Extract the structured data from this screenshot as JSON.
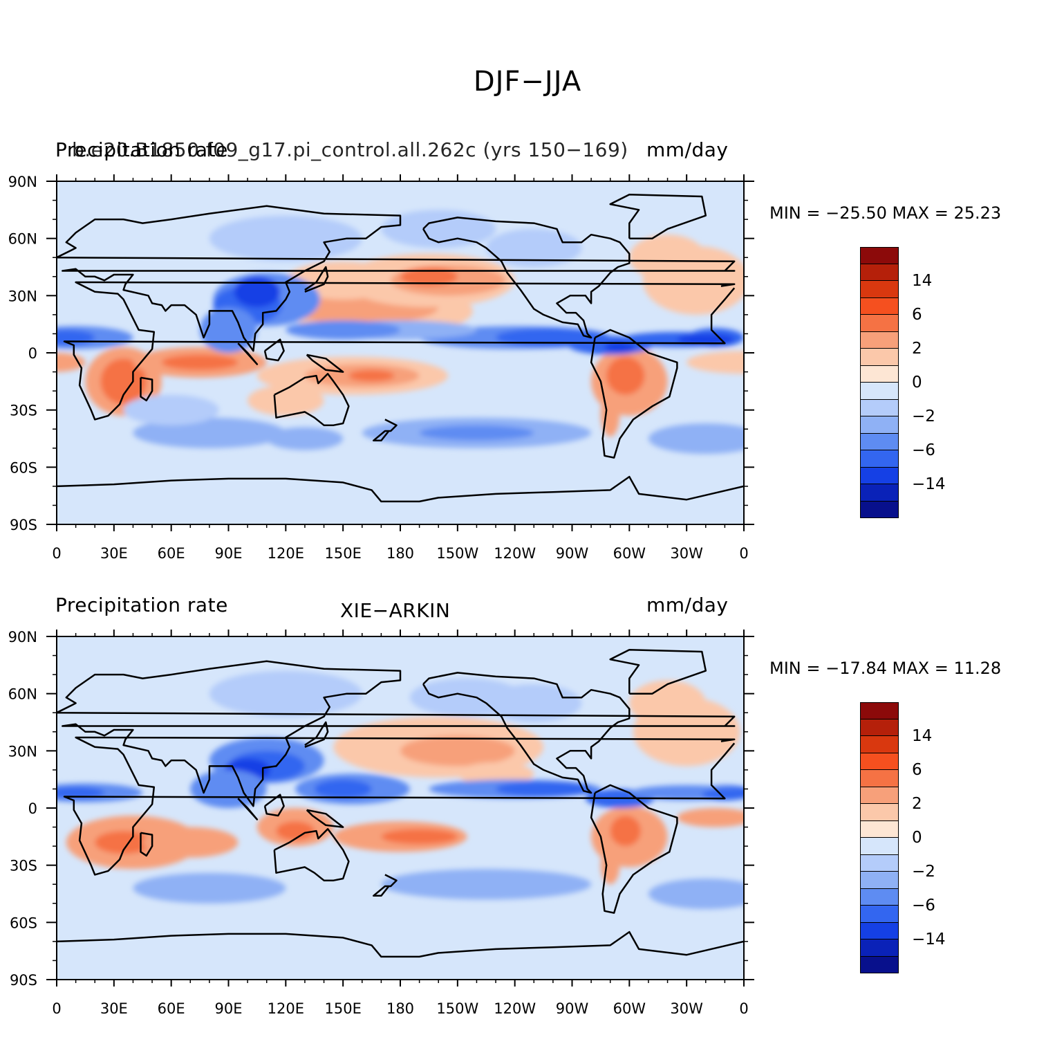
{
  "title": "DJF−JJA",
  "panels": [
    {
      "left_title": "Precipitation rate",
      "center_title": "b.e20.B1850.f09_g17.pi_control.all.262c (yrs 150−169)",
      "right_title": "mm/day",
      "min_max_text": "MIN = −25.50  MAX =   25.23"
    },
    {
      "left_title": "Precipitation rate",
      "center_title": "XIE−ARKIN",
      "right_title": "mm/day",
      "min_max_text": "MIN = −17.84  MAX =   11.28"
    }
  ],
  "axes": {
    "lon_labels": [
      "0",
      "30E",
      "60E",
      "90E",
      "120E",
      "150E",
      "180",
      "150W",
      "120W",
      "90W",
      "60W",
      "30W",
      "0"
    ],
    "lat_labels": [
      "90N",
      "60N",
      "30N",
      "0",
      "30S",
      "60S",
      "90S"
    ]
  },
  "colorbar": {
    "colors": [
      "#8c0a0a",
      "#b5200a",
      "#d9380f",
      "#f5501f",
      "#f57244",
      "#f7a07a",
      "#fbc8aa",
      "#fde6d4",
      "#d6e6fb",
      "#b4ccfa",
      "#8fb1f5",
      "#5e8cf2",
      "#3366f0",
      "#1540e5",
      "#0a22b8",
      "#08108c"
    ],
    "labels": [
      "14",
      "6",
      "2",
      "0",
      "−2",
      "−6",
      "−14"
    ]
  },
  "chart_data": {
    "type": "heatmap",
    "variable": "Precipitation rate",
    "units": "mm/day",
    "season_difference": "DJF−JJA",
    "panels": [
      {
        "source": "b.e20.B1850.f09_g17.pi_control.all.262c (yrs 150−169)",
        "min": -25.5,
        "max": 25.23
      },
      {
        "source": "XIE−ARKIN",
        "min": -17.84,
        "max": 11.28
      }
    ],
    "x_range": [
      0,
      360
    ],
    "y_range": [
      -90,
      90
    ],
    "colorbar_tick_labels": [
      14,
      6,
      2,
      0,
      -2,
      -6,
      -14
    ]
  }
}
